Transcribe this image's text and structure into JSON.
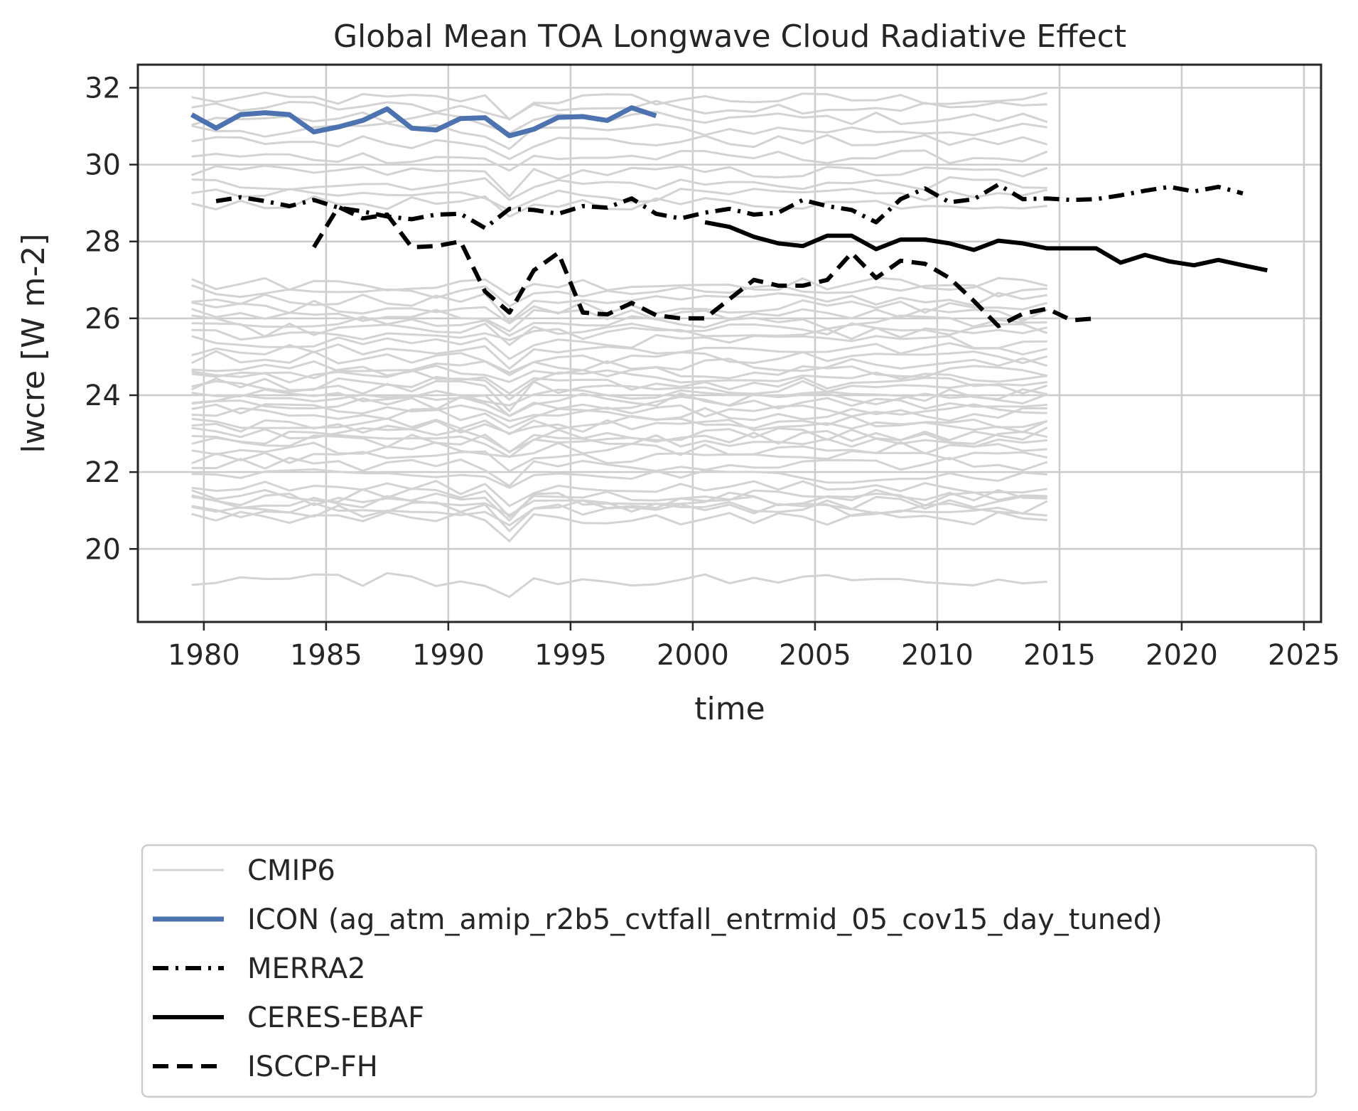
{
  "chart_data": {
    "type": "line",
    "title": "Global Mean TOA Longwave Cloud Radiative Effect",
    "xlabel": "time",
    "ylabel": "lwcre [W m-2]",
    "xlim": [
      1977.3,
      2025.7
    ],
    "ylim": [
      18.1,
      32.6
    ],
    "x_ticks": [
      1980,
      1985,
      1990,
      1995,
      2000,
      2005,
      2010,
      2015,
      2020,
      2025
    ],
    "y_ticks": [
      20,
      22,
      24,
      26,
      28,
      30,
      32
    ],
    "grid": true,
    "legend_position": "below",
    "cmip6_label": "CMIP6",
    "cmip6_years": [
      1979.5,
      2014.5
    ],
    "cmip6_member_count": 48,
    "cmip6_member_means": [
      31.7,
      31.5,
      31.2,
      30.9,
      30.6,
      30.2,
      29.8,
      29.5,
      29.2,
      29.0,
      26.9,
      26.7,
      26.5,
      26.3,
      26.1,
      25.9,
      25.7,
      25.6,
      25.4,
      25.2,
      25.0,
      24.8,
      24.6,
      24.5,
      24.3,
      24.2,
      24.0,
      23.9,
      23.8,
      23.6,
      23.5,
      23.3,
      23.2,
      23.0,
      22.9,
      22.8,
      22.6,
      22.4,
      22.2,
      21.9,
      21.6,
      21.4,
      21.3,
      21.2,
      21.1,
      21.0,
      20.8,
      19.2
    ],
    "series": [
      {
        "name": "ICON (ag_atm_amip_r2b5_cvtfall_entrmid_05_cov15_day_tuned)",
        "color": "#4c72b0",
        "style": "solid",
        "x": [
          1979.5,
          1980.5,
          1981.5,
          1982.5,
          1983.5,
          1984.5,
          1985.5,
          1986.5,
          1987.5,
          1988.5,
          1989.5,
          1990.5,
          1991.5,
          1992.5,
          1993.5,
          1994.5,
          1995.5,
          1996.5,
          1997.5,
          1998.5
        ],
        "y": [
          31.3,
          30.95,
          31.3,
          31.35,
          31.3,
          30.85,
          30.98,
          31.15,
          31.45,
          30.95,
          30.9,
          31.2,
          31.22,
          30.75,
          30.92,
          31.23,
          31.25,
          31.15,
          31.48,
          31.27
        ]
      },
      {
        "name": "MERRA2",
        "color": "#000000",
        "style": "dashdot",
        "x": [
          1980.5,
          1981.5,
          1982.5,
          1983.5,
          1984.5,
          1985.5,
          1986.5,
          1987.5,
          1988.5,
          1989.5,
          1990.5,
          1991.5,
          1992.5,
          1993.5,
          1994.5,
          1995.5,
          1996.5,
          1997.5,
          1998.5,
          1999.5,
          2000.5,
          2001.5,
          2002.5,
          2003.5,
          2004.5,
          2005.5,
          2006.5,
          2007.5,
          2008.5,
          2009.5,
          2010.5,
          2011.5,
          2012.5,
          2013.5,
          2014.5,
          2015.5,
          2016.5,
          2017.5,
          2018.5,
          2019.5,
          2020.5,
          2021.5,
          2022.5
        ],
        "y": [
          29.05,
          29.15,
          29.05,
          28.92,
          29.08,
          28.88,
          28.78,
          28.65,
          28.58,
          28.7,
          28.72,
          28.35,
          28.85,
          28.82,
          28.72,
          28.92,
          28.88,
          29.12,
          28.72,
          28.6,
          28.75,
          28.85,
          28.7,
          28.75,
          29.08,
          28.92,
          28.82,
          28.5,
          29.1,
          29.38,
          29.02,
          29.1,
          29.48,
          29.1,
          29.12,
          29.08,
          29.1,
          29.2,
          29.32,
          29.42,
          29.3,
          29.42,
          29.25
        ]
      },
      {
        "name": "CERES-EBAF",
        "color": "#000000",
        "style": "solid",
        "x": [
          2000.5,
          2001.5,
          2002.5,
          2003.5,
          2004.5,
          2005.5,
          2006.5,
          2007.5,
          2008.5,
          2009.5,
          2010.5,
          2011.5,
          2012.5,
          2013.5,
          2014.5,
          2015.5,
          2016.5,
          2017.5,
          2018.5,
          2019.5,
          2020.5,
          2021.5,
          2022.5,
          2023.5
        ],
        "y": [
          28.5,
          28.38,
          28.12,
          27.95,
          27.88,
          28.15,
          28.15,
          27.8,
          28.05,
          28.05,
          27.95,
          27.78,
          28.02,
          27.95,
          27.82,
          27.82,
          27.82,
          27.45,
          27.65,
          27.48,
          27.38,
          27.52,
          27.38,
          27.25
        ]
      },
      {
        "name": "ISCCP-FH",
        "color": "#000000",
        "style": "dashed",
        "x": [
          1984.5,
          1985.5,
          1986.5,
          1987.5,
          1988.5,
          1989.5,
          1990.5,
          1991.5,
          1992.5,
          1993.5,
          1994.5,
          1995.5,
          1996.5,
          1997.5,
          1998.5,
          1999.5,
          2000.5,
          2001.5,
          2002.5,
          2003.5,
          2004.5,
          2005.5,
          2006.5,
          2007.5,
          2008.5,
          2009.5,
          2010.5,
          2011.5,
          2012.5,
          2013.5,
          2014.5,
          2015.5,
          2016.5
        ],
        "y": [
          27.85,
          28.9,
          28.6,
          28.7,
          27.85,
          27.88,
          28.0,
          26.7,
          26.15,
          27.25,
          27.7,
          26.15,
          26.1,
          26.4,
          26.08,
          26.0,
          26.0,
          26.5,
          27.0,
          26.85,
          26.85,
          27.0,
          27.7,
          27.05,
          27.5,
          27.42,
          27.05,
          26.45,
          25.8,
          26.12,
          26.25,
          25.95,
          26.0
        ]
      }
    ]
  },
  "legend": {
    "entries": [
      {
        "label": "CMIP6",
        "color": "#d3d3d3",
        "style": "solid",
        "width": 3
      },
      {
        "label": "ICON (ag_atm_amip_r2b5_cvtfall_entrmid_05_cov15_day_tuned)",
        "color": "#4c72b0",
        "style": "solid",
        "width": 7
      },
      {
        "label": "MERRA2",
        "color": "#000000",
        "style": "dashdot",
        "width": 6
      },
      {
        "label": "CERES-EBAF",
        "color": "#000000",
        "style": "solid",
        "width": 6
      },
      {
        "label": "ISCCP-FH",
        "color": "#000000",
        "style": "dashed",
        "width": 6
      }
    ]
  }
}
